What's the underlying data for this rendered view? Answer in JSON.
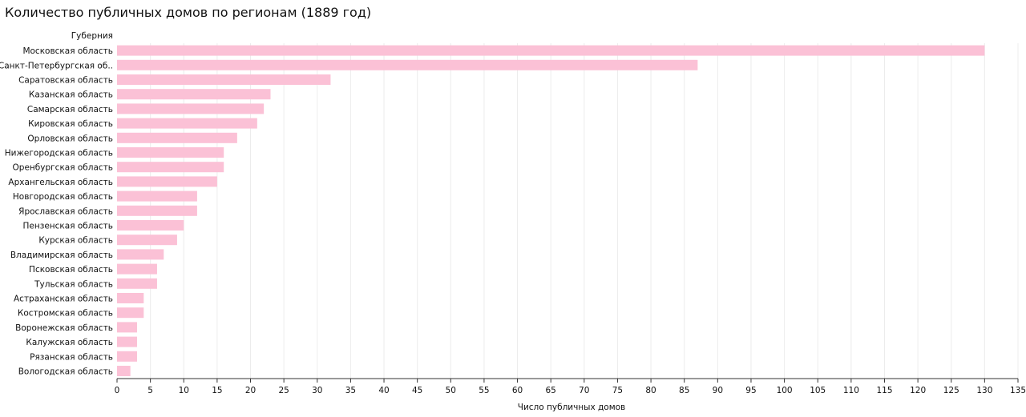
{
  "chart_data": {
    "type": "bar",
    "orientation": "horizontal",
    "title": "Количество публичных домов по регионам (1889 год)",
    "ylabel": "Губерния",
    "xlabel": "Число публичных домов",
    "xlim": [
      0,
      135
    ],
    "xticks": [
      0,
      5,
      10,
      15,
      20,
      25,
      30,
      35,
      40,
      45,
      50,
      55,
      60,
      65,
      70,
      75,
      80,
      85,
      90,
      95,
      100,
      105,
      110,
      115,
      120,
      125,
      130,
      135
    ],
    "grid": true,
    "bar_color": "#fbc1d6",
    "categories": [
      "Московская область",
      "Санкт-Петербургская об..",
      "Саратовская область",
      "Казанская область",
      "Самарская область",
      "Кировская область",
      "Орловская область",
      "Нижегородская область",
      "Оренбургская область",
      "Архангельская область",
      "Новгородская область",
      "Ярославская область",
      "Пензенская область",
      "Курская область",
      "Владимирская область",
      "Псковская область",
      "Тульская область",
      "Астраханская область",
      "Костромская область",
      "Воронежская область",
      "Калужская область",
      "Рязанская область",
      "Вологодская область"
    ],
    "values": [
      130,
      87,
      32,
      23,
      22,
      21,
      18,
      16,
      16,
      15,
      12,
      12,
      10,
      9,
      7,
      6,
      6,
      4,
      4,
      3,
      3,
      3,
      2
    ]
  }
}
